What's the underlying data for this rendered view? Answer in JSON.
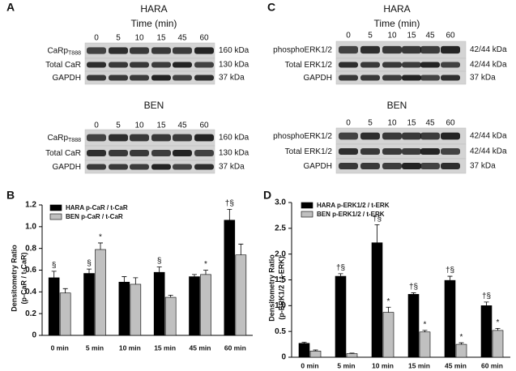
{
  "blots": [
    {
      "letter": "A",
      "groups": [
        {
          "title": "HARA",
          "axis_label": "Time (min)",
          "times": [
            "0",
            "5",
            "10",
            "15",
            "45",
            "60"
          ],
          "rows": [
            {
              "label": "CaRp",
              "sub": "T888",
              "size": "160 kDa"
            },
            {
              "label": "Total CaR",
              "size": "130 kDa"
            },
            {
              "label": "GAPDH",
              "size": "37 kDa"
            }
          ]
        },
        {
          "title": "BEN",
          "times": [
            "0",
            "5",
            "10",
            "15",
            "45",
            "60"
          ],
          "rows": [
            {
              "label": "CaRp",
              "sub": "T888",
              "size": "160 kDa"
            },
            {
              "label": "Total CaR",
              "size": "130 kDa"
            },
            {
              "label": "GAPDH",
              "size": "37 kDa"
            }
          ]
        }
      ]
    },
    {
      "letter": "C",
      "groups": [
        {
          "title": "HARA",
          "axis_label": "Time (min)",
          "times": [
            "0",
            "5",
            "10",
            "15",
            "45",
            "60"
          ],
          "rows": [
            {
              "label": "phosphoERK1/2",
              "size": "42/44 kDa"
            },
            {
              "label": "Total ERK1/2",
              "size": "42/44 kDa"
            },
            {
              "label": "GAPDH",
              "size": "37 kDa"
            }
          ]
        },
        {
          "title": "BEN",
          "times": [
            "0",
            "5",
            "10",
            "15",
            "45",
            "60"
          ],
          "rows": [
            {
              "label": "phosphoERK1/2",
              "size": "42/44 kDa"
            },
            {
              "label": "Total ERK1/2",
              "size": "42/44 kDa"
            },
            {
              "label": "GAPDH",
              "size": "37 kDa"
            }
          ]
        }
      ]
    }
  ],
  "chart_data": [
    {
      "type": "bar",
      "letter": "B",
      "y_label": [
        "Densitometry Ratio",
        "(p-CaR / t-CaR)"
      ],
      "categories": [
        "0 min",
        "5 min",
        "10 min",
        "15 min",
        "45 min",
        "60 min"
      ],
      "ylim": [
        0,
        1.2
      ],
      "yticks": [
        0,
        0.2,
        0.4,
        0.6,
        0.8,
        {
          "value": 1,
          "label": "1.0"
        },
        1.2
      ],
      "series": [
        {
          "name": "HARA p-CaR / t-CaR",
          "color": "#000000",
          "values": [
            0.53,
            0.57,
            0.49,
            0.58,
            0.54,
            1.06
          ],
          "errors": [
            0.06,
            0.04,
            0.05,
            0.05,
            0.02,
            0.1
          ],
          "annotations": [
            "§",
            "§",
            null,
            "§",
            null,
            "†§"
          ]
        },
        {
          "name": "BEN p-CaR / t-CaR",
          "color": "#c0c0c0",
          "values": [
            0.39,
            0.79,
            0.47,
            0.35,
            0.56,
            0.74
          ],
          "errors": [
            0.04,
            0.06,
            0.06,
            0.02,
            0.04,
            0.1
          ],
          "annotations": [
            null,
            "*",
            null,
            null,
            "*",
            null
          ]
        }
      ]
    },
    {
      "type": "bar",
      "letter": "D",
      "y_label": [
        "Densitometry Ratio",
        "(p-ERK1/2 / t-ERK)"
      ],
      "categories": [
        "0 min",
        "5 min",
        "10 min",
        "15 min",
        "45 min",
        "60 min"
      ],
      "ylim": [
        0,
        3
      ],
      "yticks": [
        0,
        0.5,
        {
          "value": 1,
          "label": "1.0"
        },
        1.5,
        {
          "value": 2,
          "label": "2.0"
        },
        2.5,
        {
          "value": 3,
          "label": "3.0"
        }
      ],
      "series": [
        {
          "name": "HARA p-ERK1/2 / t-ERK",
          "color": "#000000",
          "values": [
            0.27,
            1.57,
            2.22,
            1.22,
            1.49,
            1.0
          ],
          "errors": [
            0.02,
            0.05,
            0.35,
            0.03,
            0.08,
            0.07
          ],
          "annotations": [
            null,
            "†§",
            "†§",
            "†§",
            "†§",
            "†§"
          ]
        },
        {
          "name": "BEN p-ERK1/2 / t-ERK",
          "color": "#c0c0c0",
          "values": [
            0.12,
            0.07,
            0.87,
            0.49,
            0.25,
            0.52
          ],
          "errors": [
            0.02,
            0.01,
            0.1,
            0.03,
            0.03,
            0.04
          ],
          "annotations": [
            null,
            null,
            "*",
            "*",
            "*",
            "*"
          ]
        }
      ]
    }
  ]
}
